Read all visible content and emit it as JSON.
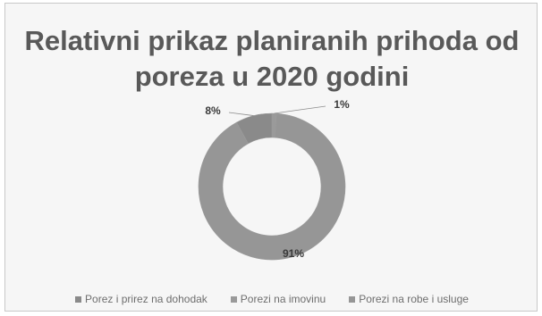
{
  "chart_data": {
    "type": "pie",
    "donut": true,
    "title": "Relativni prikaz planiranih prihoda od poreza u 2020 godini",
    "title_lines": [
      "Relativni prikaz planiranih prihoda od",
      "poreza u 2020 godini"
    ],
    "categories": [
      "Porez i prirez na dohodak",
      "Porezi na imovinu",
      "Porezi na robe i usluge"
    ],
    "values": [
      8,
      1,
      91
    ],
    "labels": [
      "8%",
      "1%",
      "91%"
    ],
    "legend_labels": [
      "Porez i prirez na dohodak",
      "Porezi na imovinu",
      "Porezi na robe i usluge"
    ],
    "legend_position": "bottom",
    "colors": [
      "#8a8a8a",
      "#9a9a9a",
      "#969696"
    ]
  }
}
